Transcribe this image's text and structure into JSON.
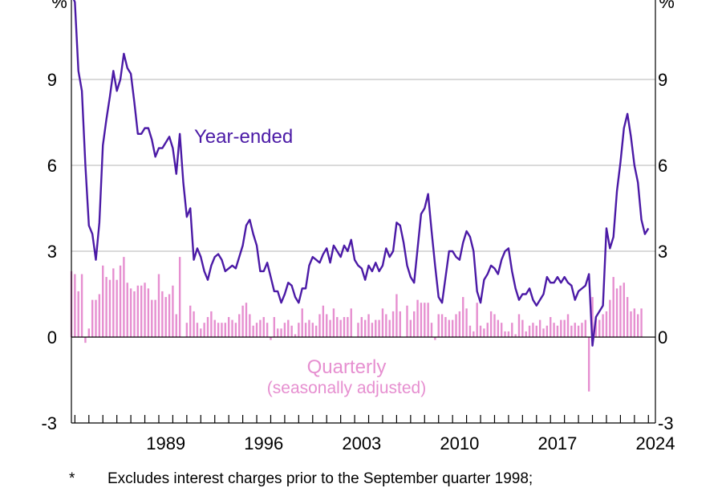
{
  "chart_data": {
    "type": "bar+line",
    "unit_left": "%",
    "unit_right": "%",
    "ylim": [
      -3,
      12
    ],
    "yticks": [
      -3,
      0,
      3,
      6,
      9
    ],
    "grid": true,
    "x_start": 1982.75,
    "x_end": 2024.5,
    "xtick_labels": [
      "1989",
      "1996",
      "2003",
      "2010",
      "2017",
      "2024"
    ],
    "series": [
      {
        "name": "Year-ended",
        "type": "line",
        "color": "#4b1aa6",
        "start": 1982.75,
        "step": 0.25,
        "values": [
          12.0,
          11.7,
          9.3,
          8.6,
          6.0,
          3.9,
          3.6,
          2.7,
          4.0,
          6.7,
          7.6,
          8.4,
          9.3,
          8.6,
          9.0,
          9.9,
          9.4,
          9.2,
          8.2,
          7.1,
          7.1,
          7.3,
          7.3,
          6.9,
          6.3,
          6.6,
          6.6,
          6.8,
          7.0,
          6.6,
          5.7,
          7.1,
          5.4,
          4.2,
          4.5,
          2.7,
          3.1,
          2.8,
          2.3,
          2.0,
          2.5,
          2.8,
          2.9,
          2.7,
          2.3,
          2.4,
          2.5,
          2.4,
          2.8,
          3.2,
          3.9,
          4.1,
          3.6,
          3.2,
          2.3,
          2.3,
          2.6,
          2.1,
          1.6,
          1.6,
          1.2,
          1.5,
          1.9,
          1.8,
          1.4,
          1.2,
          1.7,
          1.7,
          2.5,
          2.8,
          2.7,
          2.6,
          2.9,
          3.1,
          2.6,
          3.2,
          3.0,
          2.8,
          3.2,
          3.0,
          3.4,
          2.7,
          2.5,
          2.4,
          2.0,
          2.5,
          2.3,
          2.6,
          2.3,
          2.5,
          3.1,
          2.8,
          3.0,
          4.0,
          3.9,
          3.3,
          2.5,
          2.1,
          1.9,
          3.1,
          4.3,
          4.5,
          5.0,
          3.7,
          2.5,
          1.4,
          1.2,
          2.1,
          3.0,
          3.0,
          2.8,
          2.7,
          3.3,
          3.7,
          3.5,
          3.0,
          1.6,
          1.2,
          2.0,
          2.2,
          2.5,
          2.4,
          2.2,
          2.7,
          3.0,
          3.1,
          2.3,
          1.7,
          1.3,
          1.5,
          1.5,
          1.7,
          1.3,
          1.1,
          1.3,
          1.5,
          2.1,
          1.9,
          1.9,
          2.1,
          1.9,
          2.1,
          1.9,
          1.8,
          1.3,
          1.6,
          1.7,
          1.8,
          2.2,
          -0.3,
          0.7,
          0.9,
          1.1,
          3.8,
          3.1,
          3.5,
          5.1,
          6.1,
          7.3,
          7.8,
          7.0,
          6.0,
          5.4,
          4.1,
          3.6,
          3.8
        ]
      },
      {
        "name": "Quarterly",
        "subtitle": "(seasonally adjusted)",
        "type": "bar",
        "color": "#e68fd0",
        "start": 1982.75,
        "step": 0.25,
        "values": [
          2.3,
          2.2,
          1.6,
          2.2,
          -0.2,
          0.3,
          1.3,
          1.3,
          1.5,
          2.5,
          2.1,
          2.0,
          2.4,
          2.0,
          2.5,
          2.8,
          1.9,
          1.7,
          1.6,
          1.8,
          1.8,
          1.9,
          1.7,
          1.3,
          1.3,
          2.2,
          1.6,
          1.4,
          1.5,
          1.8,
          0.8,
          2.8,
          0.0,
          0.5,
          1.1,
          0.9,
          0.5,
          0.3,
          0.5,
          0.7,
          0.9,
          0.6,
          0.5,
          0.5,
          0.5,
          0.7,
          0.6,
          0.5,
          0.8,
          1.1,
          1.2,
          0.8,
          0.4,
          0.5,
          0.6,
          0.7,
          0.5,
          -0.1,
          0.7,
          0.3,
          0.3,
          0.5,
          0.6,
          0.4,
          0.1,
          0.5,
          1.0,
          0.5,
          0.6,
          0.5,
          0.4,
          0.8,
          1.1,
          0.8,
          0.6,
          1.0,
          0.7,
          0.6,
          0.7,
          0.7,
          1.0,
          0.0,
          0.5,
          0.7,
          0.6,
          0.8,
          0.5,
          0.6,
          0.6,
          1.0,
          0.8,
          0.6,
          0.9,
          1.5,
          0.9,
          0.0,
          1.1,
          0.6,
          0.9,
          1.3,
          1.2,
          1.2,
          1.2,
          0.5,
          -0.1,
          0.8,
          0.8,
          0.7,
          0.6,
          0.6,
          0.8,
          0.9,
          1.4,
          1.0,
          0.4,
          0.2,
          1.2,
          0.4,
          0.3,
          0.5,
          0.9,
          0.8,
          0.6,
          0.5,
          0.2,
          0.2,
          0.5,
          0.1,
          0.8,
          0.6,
          0.2,
          0.4,
          0.5,
          0.4,
          0.6,
          0.3,
          0.4,
          0.7,
          0.5,
          0.4,
          0.6,
          0.6,
          0.8,
          0.4,
          0.5,
          0.4,
          0.5,
          0.6,
          -1.9,
          1.4,
          0.7,
          0.6,
          0.8,
          0.9,
          1.3,
          2.1,
          1.7,
          1.8,
          1.9,
          1.4,
          0.9,
          1.0,
          0.8,
          1.0
        ]
      }
    ]
  },
  "labels": {
    "year_ended": "Year-ended",
    "quarterly": "Quarterly",
    "quarterly_sub": "(seasonally adjusted)"
  },
  "footnote": {
    "mark": "*",
    "text": "Excludes interest charges prior to the September quarter 1998;"
  }
}
